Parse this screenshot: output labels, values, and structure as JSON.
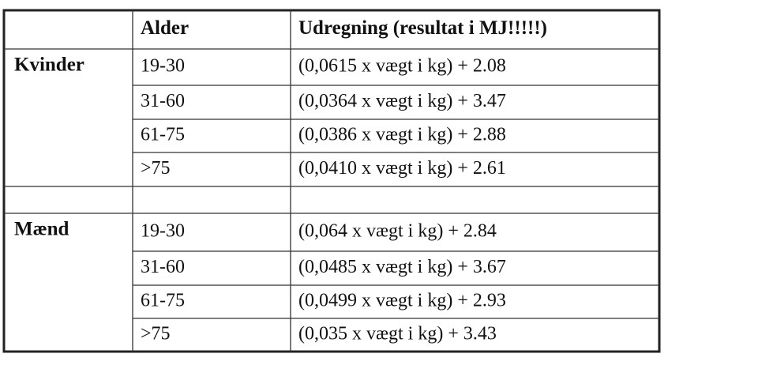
{
  "table": {
    "header": [
      "Alder",
      "Udregning (resultat i MJ!!!!!)"
    ],
    "groups": [
      {
        "label": "Kvinder",
        "rows": [
          [
            "19-30",
            "(0,0615 x vægt i kg) + 2.08"
          ],
          [
            "31-60",
            "(0,0364 x vægt i kg) + 3.47"
          ],
          [
            "61-75",
            "(0,0386 x vægt i kg) + 2.88"
          ],
          [
            ">75",
            "(0,0410 x vægt i kg) + 2.61"
          ]
        ]
      },
      {
        "label": "Mænd",
        "rows": [
          [
            "19-30",
            "(0,064 x vægt i kg) + 2.84"
          ],
          [
            "31-60",
            "(0,0485 x vægt i kg) + 3.67"
          ],
          [
            "61-75",
            "(0,0499 x vægt i kg) + 2.93"
          ],
          [
            ">75",
            "(0,035 x vægt i kg) + 3.43"
          ]
        ]
      }
    ]
  }
}
